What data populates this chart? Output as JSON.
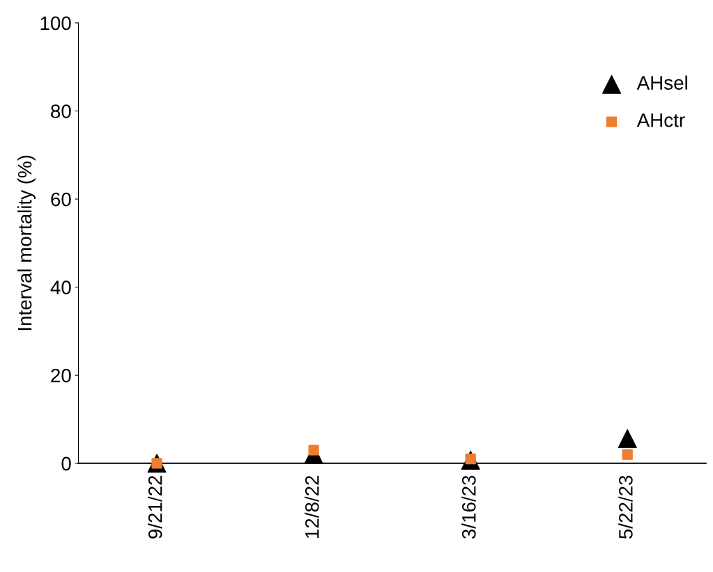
{
  "chart_data": {
    "type": "scatter",
    "ylabel": "Interval mortality (%)",
    "categories": [
      "9/21/22",
      "12/8/22",
      "3/16/23",
      "5/22/23"
    ],
    "series": [
      {
        "name": "AHsel",
        "color": "#000000",
        "marker": "triangle",
        "values": [
          0,
          2,
          0.7,
          5.6
        ]
      },
      {
        "name": "AHctr",
        "color": "#ed7d31",
        "marker": "square",
        "values": [
          0,
          3,
          1,
          2
        ]
      }
    ],
    "ylim": [
      0,
      100
    ],
    "yticks": [
      0,
      20,
      40,
      60,
      80,
      100
    ],
    "grid": false,
    "legend": "top right"
  }
}
